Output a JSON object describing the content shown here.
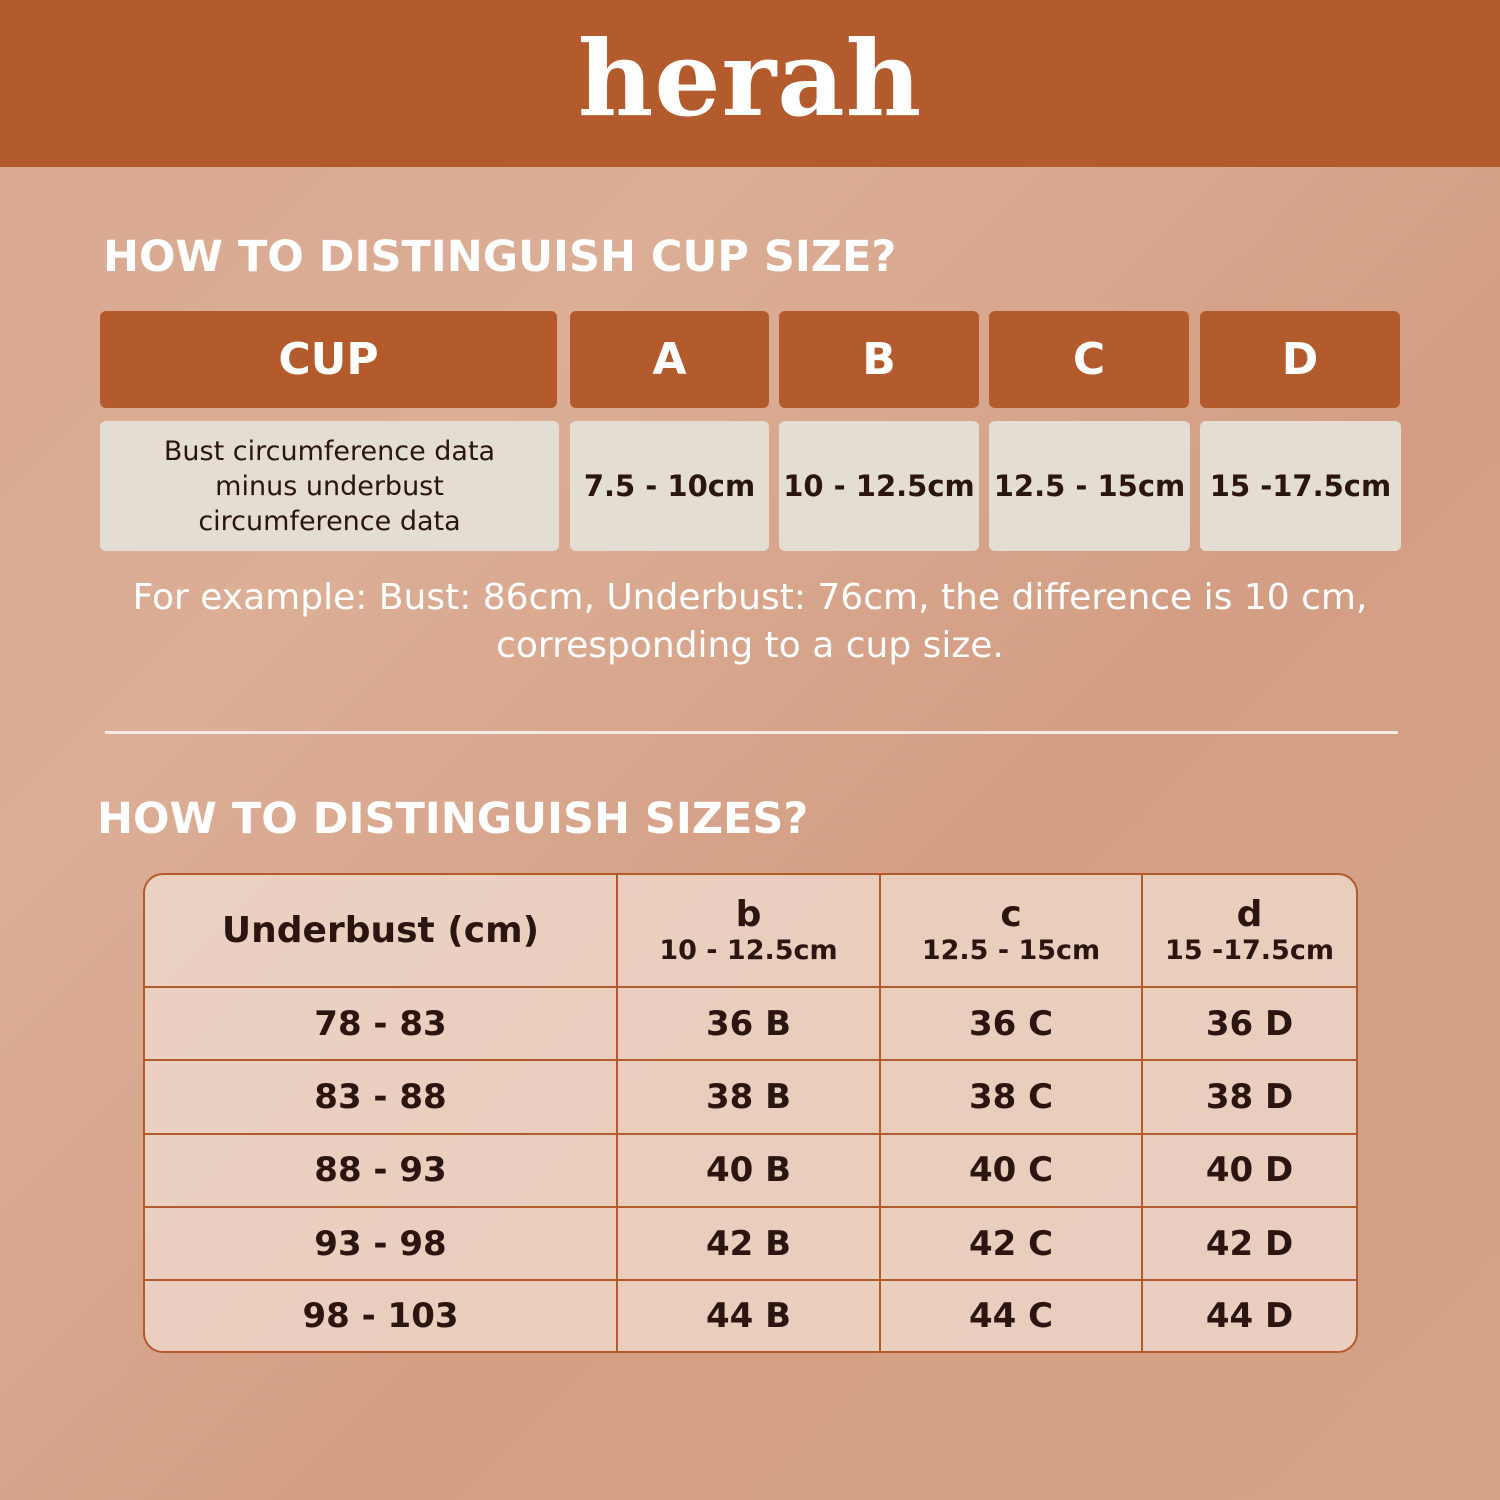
{
  "brand": {
    "logo": "herah",
    "color": "#b35b2d"
  },
  "cup_section": {
    "heading": "HOW TO DISTINGUISH CUP SIZE?",
    "header": [
      "CUP",
      "A",
      "B",
      "C",
      "D"
    ],
    "row": [
      "Bust circumference data minus underbust circumference data",
      "7.5 - 10cm",
      "10 - 12.5cm",
      "12.5 - 15cm",
      "15 -17.5cm"
    ],
    "example": "For example: Bust: 86cm, Underbust: 76cm, the difference is 10 cm, corresponding to a cup size."
  },
  "size_section": {
    "heading": "HOW TO DISTINGUISH SIZES?",
    "columns": [
      {
        "label": "Underbust (cm)",
        "sub": ""
      },
      {
        "label": "b",
        "sub": "10 - 12.5cm"
      },
      {
        "label": "c",
        "sub": "12.5 - 15cm"
      },
      {
        "label": "d",
        "sub": "15 -17.5cm"
      }
    ],
    "rows": [
      [
        "78 - 83",
        "36 B",
        "36 C",
        "36 D"
      ],
      [
        "83 - 88",
        "38 B",
        "38 C",
        "38 D"
      ],
      [
        "88 - 93",
        "40 B",
        "40 C",
        "40 D"
      ],
      [
        "93 - 98",
        "42 B",
        "42 C",
        "42 D"
      ],
      [
        "98 - 103",
        "44 B",
        "44 C",
        "44 D"
      ]
    ]
  }
}
